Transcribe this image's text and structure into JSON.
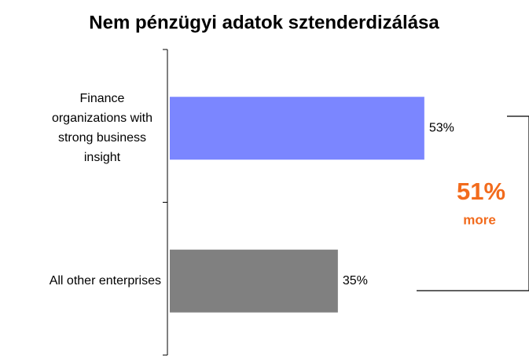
{
  "chart_data": {
    "type": "bar",
    "orientation": "horizontal",
    "title": "Nem pénzügyi adatok sztenderdizálása",
    "categories": [
      "Finance organizations with strong business insight",
      "All other enterprises"
    ],
    "values": [
      53,
      35
    ],
    "value_labels": [
      "53%",
      "35%"
    ],
    "colors": [
      "#7b86ff",
      "#808080"
    ],
    "annotation": {
      "value": 51,
      "value_label": "51%",
      "text": "more",
      "color": "#f26b1d"
    }
  }
}
